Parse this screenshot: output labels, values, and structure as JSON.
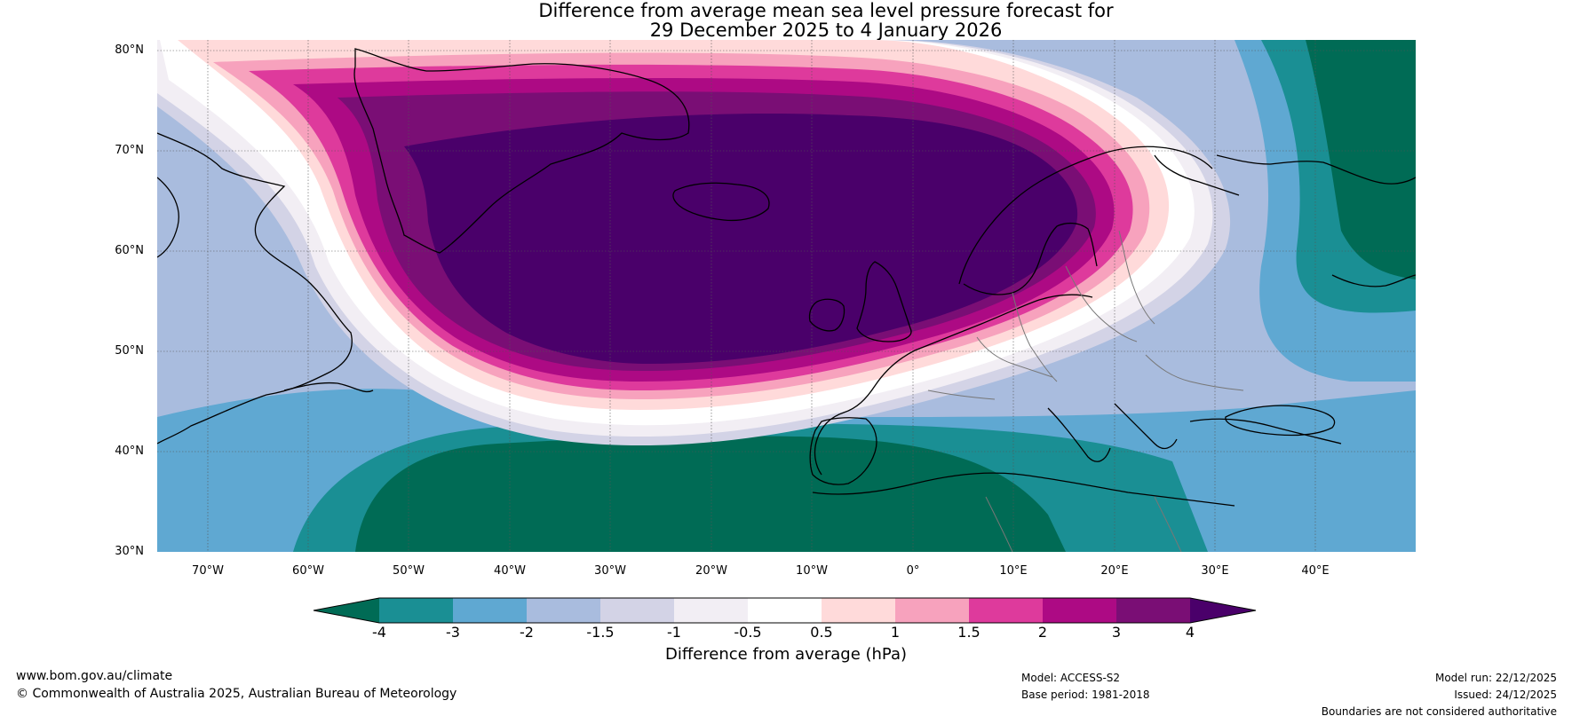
{
  "title_line1": "Difference from average mean sea level pressure forecast for",
  "title_line2": "29 December 2025 to 4 January 2026",
  "map": {
    "lat_labels": [
      "80°N",
      "70°N",
      "60°N",
      "50°N",
      "40°N",
      "30°N"
    ],
    "lon_labels": [
      "70°W",
      "60°W",
      "50°W",
      "40°W",
      "30°W",
      "20°W",
      "10°W",
      "0°",
      "10°E",
      "20°E",
      "30°E",
      "40°E"
    ],
    "lat_range": [
      30,
      80
    ],
    "lon_range": [
      -75,
      50
    ]
  },
  "legend": {
    "label": "Difference from average (hPa)",
    "ticks": [
      "-4",
      "-3",
      "-2",
      "-1.5",
      "-1",
      "-0.5",
      "0.5",
      "1",
      "1.5",
      "2",
      "3",
      "4"
    ],
    "colors": [
      "#006b55",
      "#1a8f94",
      "#5fa8d2",
      "#a9bcde",
      "#d3d3e6",
      "#f2eef4",
      "#ffffff",
      "#ffdada",
      "#f7a2bd",
      "#de3a9c",
      "#ad0a84",
      "#7a0e75",
      "#4a006a"
    ]
  },
  "footer": {
    "website": "www.bom.gov.au/climate",
    "copyright": "© Commonwealth of Australia 2025, Australian Bureau of Meteorology",
    "model": "Model: ACCESS-S2",
    "base_period": "Base period: 1981-2018",
    "model_run": "Model run: 22/12/2025",
    "issued": "Issued: 24/12/2025",
    "disclaimer": "Boundaries are not considered authoritative"
  }
}
